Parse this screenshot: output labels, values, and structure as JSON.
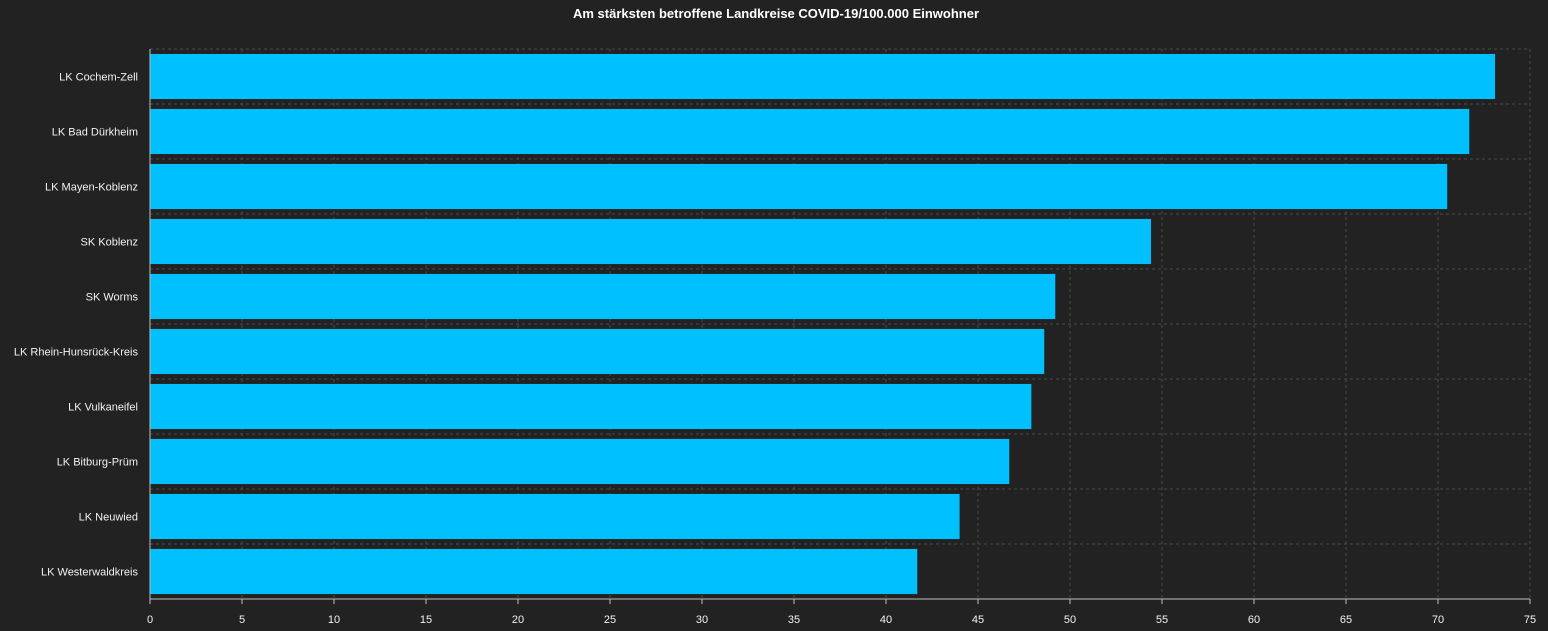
{
  "chart_data": {
    "type": "bar",
    "orientation": "horizontal",
    "title": "Am stärksten betroffene Landkreise COVID-19/100.000 Einwohner",
    "xlabel": "",
    "ylabel": "",
    "categories": [
      "LK Cochem-Zell",
      "LK Bad Dürkheim",
      "LK Mayen-Koblenz",
      "SK Koblenz",
      "SK Worms",
      "LK Rhein-Hunsrück-Kreis",
      "LK Vulkaneifel",
      "LK Bitburg-Prüm",
      "LK Neuwied",
      "LK Westerwaldkreis"
    ],
    "values": [
      73.1,
      71.7,
      70.5,
      54.4,
      49.2,
      48.6,
      47.9,
      46.7,
      44.0,
      41.7
    ],
    "xlim": [
      0,
      75
    ],
    "xticks": [
      "0",
      "5",
      "10",
      "15",
      "20",
      "25",
      "30",
      "35",
      "40",
      "45",
      "50",
      "55",
      "60",
      "65",
      "70",
      "75"
    ],
    "grid": true,
    "legend": "none",
    "colors": {
      "bar": "#00c0ff",
      "background": "#222222",
      "grid": "#4a4a4a",
      "text": "#f2f2f2"
    }
  }
}
